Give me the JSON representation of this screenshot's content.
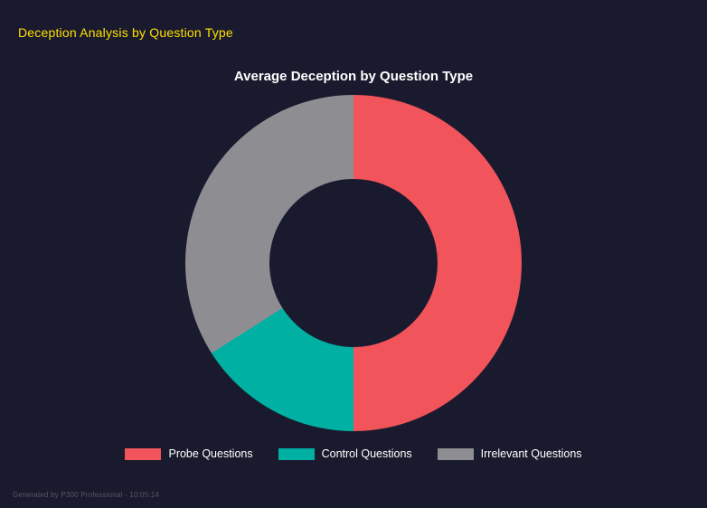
{
  "header": {
    "title": "Deception Analysis by Question Type"
  },
  "chart_data": {
    "type": "pie",
    "subtype": "donut",
    "title": "Average Deception by Question Type",
    "labels": [
      "Probe Questions",
      "Control Questions",
      "Irrelevant Questions"
    ],
    "values": [
      50,
      16,
      34
    ],
    "colors": [
      "#f2545b",
      "#00b0a3",
      "#8e8e92"
    ],
    "legend_position": "bottom",
    "start_angle_deg": 0,
    "direction": "clockwise",
    "donut_hole_ratio": 0.5
  },
  "footer": {
    "caption": "Generated by P300 Professional - 10:05:14"
  },
  "colors": {
    "background": "#1a1a2e",
    "header_text": "#ffe000",
    "title_text": "#ffffff",
    "legend_text": "#ffffff",
    "footer_text": "#565664"
  }
}
